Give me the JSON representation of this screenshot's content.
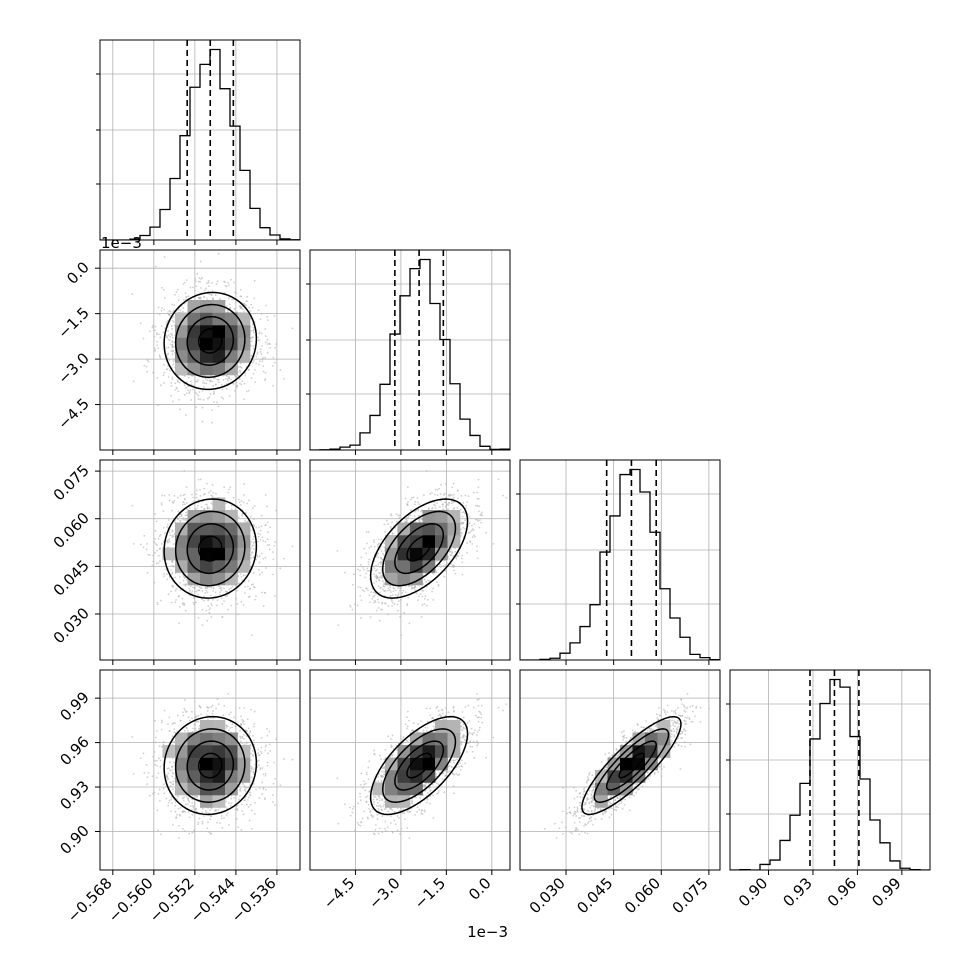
{
  "chart_data": {
    "type": "corner",
    "description_source": "corner plot of 4 parameters: 1D histograms on diagonal with 16/50/84 percentile dashed lines; 2D density (gray hist + sample points + contours) below diagonal",
    "params": [
      {
        "range": [
          -0.5705,
          -0.5315
        ],
        "ticks": [
          -0.568,
          -0.56,
          -0.552,
          -0.544,
          -0.536
        ],
        "tick_labels": [
          "−0.568",
          "−0.560",
          "−0.552",
          "−0.544",
          "−0.536"
        ],
        "offset_label": "",
        "median": -0.549,
        "sigma": 0.0045,
        "quantiles": [
          -0.5535,
          -0.549,
          -0.5445
        ]
      },
      {
        "range": [
          -0.006,
          0.0006
        ],
        "ticks": [
          -0.0045,
          -0.003,
          -0.0015,
          0.0
        ],
        "tick_labels": [
          "−4.5",
          "−3.0",
          "−1.5",
          "0.0"
        ],
        "offset_label": "1e−3",
        "median": -0.0024,
        "sigma": 0.0008,
        "quantiles": [
          -0.0032,
          -0.0024,
          -0.0016
        ]
      },
      {
        "range": [
          0.0155,
          0.0785
        ],
        "ticks": [
          0.03,
          0.045,
          0.06,
          0.075
        ],
        "tick_labels": [
          "0.030",
          "0.045",
          "0.060",
          "0.075"
        ],
        "offset_label": "",
        "median": 0.0506,
        "sigma": 0.0078,
        "quantiles": [
          0.0428,
          0.0506,
          0.0584
        ]
      },
      {
        "range": [
          0.874,
          1.009
        ],
        "ticks": [
          0.9,
          0.93,
          0.96,
          0.99
        ],
        "tick_labels": [
          "0.90",
          "0.93",
          "0.96",
          "0.99"
        ],
        "offset_label": "",
        "median": 0.9445,
        "sigma": 0.0165,
        "quantiles": [
          0.928,
          0.9445,
          0.961
        ]
      }
    ],
    "correlation": [
      [
        1.0,
        0.05,
        0.05,
        0.05
      ],
      [
        0.05,
        1.0,
        0.55,
        0.65
      ],
      [
        0.05,
        0.55,
        1.0,
        0.85
      ],
      [
        0.05,
        0.65,
        0.85,
        1.0
      ]
    ],
    "grid": true,
    "quantile_line_style": "dashed",
    "colors": {
      "line": "#000000",
      "points": "#b0b0b0",
      "grid": "#b0b0b0",
      "frame": "#000000"
    }
  }
}
